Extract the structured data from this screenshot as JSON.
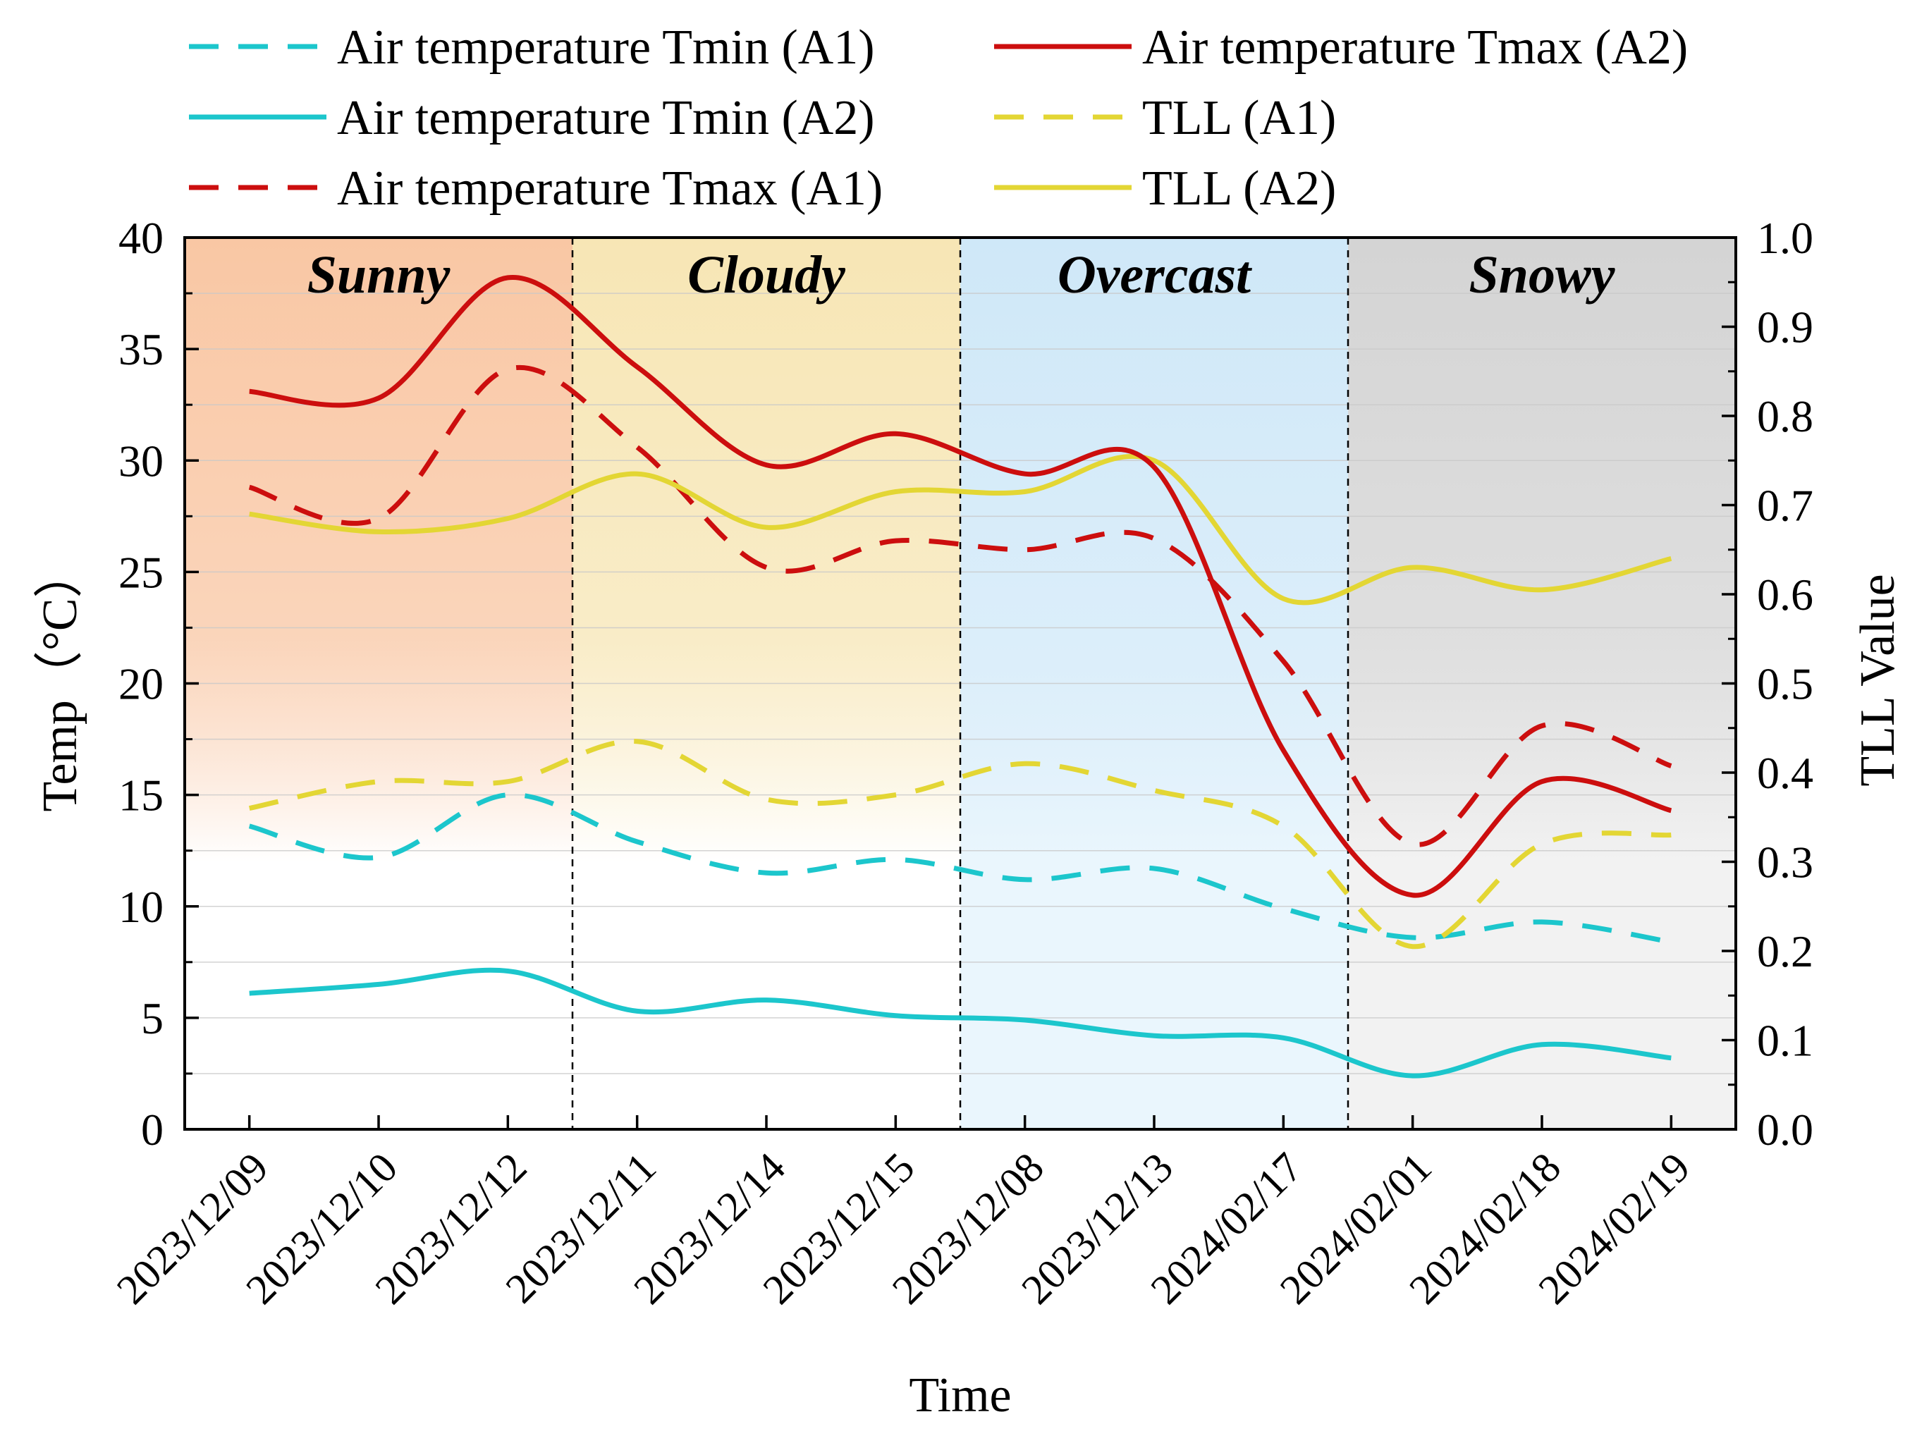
{
  "chart_data": {
    "type": "line",
    "xlabel": "Time",
    "ylabel": "Temp（°C）",
    "y2label": "TLL Value",
    "categories": [
      "2023/12/09",
      "2023/12/10",
      "2023/12/12",
      "2023/12/11",
      "2023/12/14",
      "2023/12/15",
      "2023/12/08",
      "2023/12/13",
      "2024/02/17",
      "2024/02/01",
      "2024/02/18",
      "2024/02/19"
    ],
    "ylim": [
      0,
      40
    ],
    "y2lim": [
      0.0,
      1.0
    ],
    "yticks": [
      "0",
      "5",
      "10",
      "15",
      "20",
      "25",
      "30",
      "35",
      "40"
    ],
    "y2ticks": [
      "0.0",
      "0.1",
      "0.2",
      "0.3",
      "0.4",
      "0.5",
      "0.6",
      "0.7",
      "0.8",
      "0.9",
      "1.0"
    ],
    "weather_regions": [
      {
        "label": "Sunny",
        "start_index": 0,
        "end_index": 2,
        "color_top": "#f9c7a4",
        "color_bottom": "#ffffff"
      },
      {
        "label": "Cloudy",
        "start_index": 3,
        "end_index": 5,
        "color_top": "#f7e6b5",
        "color_bottom": "#ffffff"
      },
      {
        "label": "Overcast",
        "start_index": 6,
        "end_index": 8,
        "color_top": "#cfe8f8",
        "color_bottom": "#eaf6fd"
      },
      {
        "label": "Snowy",
        "start_index": 9,
        "end_index": 11,
        "color_top": "#d4d4d4",
        "color_bottom": "#f2f2f2"
      }
    ],
    "series": [
      {
        "name": "Air temperature Tmin (A1)",
        "axis": "left",
        "color": "#1cc6cc",
        "dash": "dashed",
        "values": [
          13.6,
          12.2,
          15.0,
          12.9,
          11.5,
          12.1,
          11.2,
          11.7,
          9.9,
          8.6,
          9.3,
          8.4
        ]
      },
      {
        "name": "Air temperature Tmin (A2)",
        "axis": "left",
        "color": "#1cc6cc",
        "dash": "solid",
        "values": [
          6.1,
          6.5,
          7.1,
          5.3,
          5.8,
          5.1,
          4.9,
          4.2,
          4.1,
          2.4,
          3.8,
          3.2
        ]
      },
      {
        "name": "Air temperature Tmax (A1)",
        "axis": "left",
        "color": "#cc0e0e",
        "dash": "dashed",
        "values": [
          28.8,
          27.4,
          34.1,
          30.6,
          25.2,
          26.4,
          26.0,
          26.5,
          21.0,
          12.8,
          18.1,
          16.3
        ]
      },
      {
        "name": "Air temperature Tmax (A2)",
        "axis": "left",
        "color": "#cc0e0e",
        "dash": "solid",
        "values": [
          33.1,
          32.8,
          38.2,
          34.2,
          29.8,
          31.2,
          29.4,
          29.7,
          17.0,
          10.5,
          15.6,
          14.3
        ]
      },
      {
        "name": "TLL (A1)",
        "axis": "right",
        "color": "#e3d634",
        "dash": "dashed",
        "values": [
          0.36,
          0.39,
          0.39,
          0.435,
          0.37,
          0.375,
          0.41,
          0.38,
          0.34,
          0.205,
          0.32,
          0.33
        ]
      },
      {
        "name": "TLL (A2)",
        "axis": "right",
        "color": "#e3d634",
        "dash": "solid",
        "values": [
          0.69,
          0.67,
          0.685,
          0.735,
          0.675,
          0.715,
          0.715,
          0.75,
          0.595,
          0.63,
          0.605,
          0.64
        ]
      }
    ],
    "grid": true,
    "legend_position": "top"
  }
}
